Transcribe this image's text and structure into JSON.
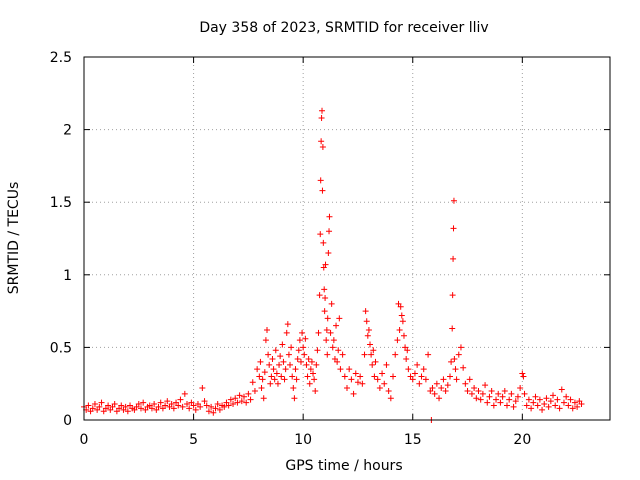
{
  "chart_data": {
    "type": "scatter",
    "title": "Day 358 of 2023, SRMTID for receiver lliv",
    "xlabel": "GPS time / hours",
    "ylabel": "SRMTID / TECUs",
    "xlim": [
      0,
      24
    ],
    "ylim": [
      0,
      2.5
    ],
    "xticks": [
      0,
      5,
      10,
      15,
      20
    ],
    "yticks": [
      0,
      0.5,
      1,
      1.5,
      2,
      2.5
    ],
    "xtick_labels": [
      "0",
      "5",
      "10",
      "15",
      "20"
    ],
    "ytick_labels": [
      "0",
      "0.5",
      "1",
      "1.5",
      "2",
      "2.5"
    ],
    "grid": true,
    "marker": "+",
    "color": "#ff0000",
    "series": [
      {
        "name": "SRMTID",
        "points": [
          [
            0.0,
            0.09
          ],
          [
            0.1,
            0.07
          ],
          [
            0.2,
            0.1
          ],
          [
            0.3,
            0.06
          ],
          [
            0.4,
            0.08
          ],
          [
            0.5,
            0.11
          ],
          [
            0.6,
            0.07
          ],
          [
            0.7,
            0.09
          ],
          [
            0.8,
            0.12
          ],
          [
            0.9,
            0.06
          ],
          [
            1.0,
            0.08
          ],
          [
            1.1,
            0.1
          ],
          [
            1.2,
            0.07
          ],
          [
            1.3,
            0.09
          ],
          [
            1.4,
            0.11
          ],
          [
            1.5,
            0.06
          ],
          [
            1.6,
            0.08
          ],
          [
            1.7,
            0.1
          ],
          [
            1.8,
            0.07
          ],
          [
            1.9,
            0.09
          ],
          [
            2.0,
            0.06
          ],
          [
            2.1,
            0.1
          ],
          [
            2.2,
            0.08
          ],
          [
            2.3,
            0.07
          ],
          [
            2.4,
            0.09
          ],
          [
            2.5,
            0.11
          ],
          [
            2.6,
            0.08
          ],
          [
            2.7,
            0.12
          ],
          [
            2.8,
            0.07
          ],
          [
            2.9,
            0.09
          ],
          [
            3.0,
            0.1
          ],
          [
            3.1,
            0.08
          ],
          [
            3.2,
            0.11
          ],
          [
            3.3,
            0.07
          ],
          [
            3.4,
            0.09
          ],
          [
            3.5,
            0.12
          ],
          [
            3.6,
            0.08
          ],
          [
            3.7,
            0.1
          ],
          [
            3.8,
            0.13
          ],
          [
            3.9,
            0.09
          ],
          [
            4.0,
            0.11
          ],
          [
            4.1,
            0.08
          ],
          [
            4.2,
            0.12
          ],
          [
            4.3,
            0.1
          ],
          [
            4.4,
            0.14
          ],
          [
            4.5,
            0.09
          ],
          [
            4.6,
            0.18
          ],
          [
            4.7,
            0.11
          ],
          [
            4.8,
            0.08
          ],
          [
            4.9,
            0.12
          ],
          [
            5.0,
            0.1
          ],
          [
            5.1,
            0.07
          ],
          [
            5.2,
            0.11
          ],
          [
            5.3,
            0.09
          ],
          [
            5.4,
            0.22
          ],
          [
            5.5,
            0.13
          ],
          [
            5.6,
            0.1
          ],
          [
            5.7,
            0.06
          ],
          [
            5.8,
            0.09
          ],
          [
            5.9,
            0.05
          ],
          [
            6.0,
            0.08
          ],
          [
            6.1,
            0.11
          ],
          [
            6.2,
            0.07
          ],
          [
            6.3,
            0.1
          ],
          [
            6.4,
            0.09
          ],
          [
            6.5,
            0.12
          ],
          [
            6.6,
            0.1
          ],
          [
            6.7,
            0.14
          ],
          [
            6.8,
            0.11
          ],
          [
            6.9,
            0.15
          ],
          [
            7.0,
            0.12
          ],
          [
            7.1,
            0.17
          ],
          [
            7.2,
            0.13
          ],
          [
            7.3,
            0.16
          ],
          [
            7.4,
            0.12
          ],
          [
            7.5,
            0.18
          ],
          [
            7.6,
            0.14
          ],
          [
            7.7,
            0.26
          ],
          [
            7.8,
            0.2
          ],
          [
            7.9,
            0.35
          ],
          [
            8.0,
            0.3
          ],
          [
            8.05,
            0.4
          ],
          [
            8.1,
            0.22
          ],
          [
            8.15,
            0.28
          ],
          [
            8.2,
            0.15
          ],
          [
            8.25,
            0.33
          ],
          [
            8.3,
            0.55
          ],
          [
            8.35,
            0.62
          ],
          [
            8.4,
            0.45
          ],
          [
            8.45,
            0.38
          ],
          [
            8.5,
            0.25
          ],
          [
            8.55,
            0.3
          ],
          [
            8.6,
            0.42
          ],
          [
            8.65,
            0.35
          ],
          [
            8.7,
            0.28
          ],
          [
            8.75,
            0.48
          ],
          [
            8.8,
            0.32
          ],
          [
            8.85,
            0.25
          ],
          [
            8.9,
            0.38
          ],
          [
            8.95,
            0.44
          ],
          [
            9.0,
            0.3
          ],
          [
            9.05,
            0.52
          ],
          [
            9.1,
            0.4
          ],
          [
            9.15,
            0.28
          ],
          [
            9.2,
            0.35
          ],
          [
            9.25,
            0.6
          ],
          [
            9.3,
            0.66
          ],
          [
            9.35,
            0.45
          ],
          [
            9.4,
            0.38
          ],
          [
            9.45,
            0.5
          ],
          [
            9.5,
            0.3
          ],
          [
            9.55,
            0.22
          ],
          [
            9.6,
            0.15
          ],
          [
            9.65,
            0.35
          ],
          [
            9.7,
            0.28
          ],
          [
            9.75,
            0.42
          ],
          [
            9.8,
            0.48
          ],
          [
            9.85,
            0.55
          ],
          [
            9.9,
            0.4
          ],
          [
            9.95,
            0.6
          ],
          [
            10.0,
            0.5
          ],
          [
            10.05,
            0.45
          ],
          [
            10.1,
            0.56
          ],
          [
            10.15,
            0.38
          ],
          [
            10.2,
            0.3
          ],
          [
            10.25,
            0.42
          ],
          [
            10.3,
            0.25
          ],
          [
            10.35,
            0.35
          ],
          [
            10.4,
            0.4
          ],
          [
            10.45,
            0.32
          ],
          [
            10.5,
            0.28
          ],
          [
            10.55,
            0.2
          ],
          [
            10.6,
            0.38
          ],
          [
            10.65,
            0.48
          ],
          [
            10.7,
            0.6
          ],
          [
            10.75,
            0.86
          ],
          [
            10.78,
            1.28
          ],
          [
            10.8,
            1.65
          ],
          [
            10.82,
            1.92
          ],
          [
            10.84,
            2.08
          ],
          [
            10.86,
            2.13
          ],
          [
            10.88,
            1.58
          ],
          [
            10.9,
            1.88
          ],
          [
            10.92,
            1.22
          ],
          [
            10.94,
            1.05
          ],
          [
            10.96,
            0.9
          ],
          [
            10.98,
            0.75
          ],
          [
            11.0,
            0.84
          ],
          [
            11.02,
            1.07
          ],
          [
            11.05,
            0.55
          ],
          [
            11.08,
            0.62
          ],
          [
            11.1,
            0.45
          ],
          [
            11.12,
            0.7
          ],
          [
            11.15,
            1.15
          ],
          [
            11.18,
            1.3
          ],
          [
            11.2,
            1.4
          ],
          [
            11.25,
            0.6
          ],
          [
            11.3,
            0.8
          ],
          [
            11.35,
            0.5
          ],
          [
            11.4,
            0.55
          ],
          [
            11.45,
            0.42
          ],
          [
            11.5,
            0.65
          ],
          [
            11.55,
            0.4
          ],
          [
            11.6,
            0.48
          ],
          [
            11.65,
            0.7
          ],
          [
            11.7,
            0.35
          ],
          [
            11.8,
            0.45
          ],
          [
            11.9,
            0.3
          ],
          [
            12.0,
            0.22
          ],
          [
            12.1,
            0.35
          ],
          [
            12.2,
            0.28
          ],
          [
            12.3,
            0.18
          ],
          [
            12.4,
            0.32
          ],
          [
            12.5,
            0.26
          ],
          [
            12.6,
            0.3
          ],
          [
            12.7,
            0.25
          ],
          [
            12.8,
            0.45
          ],
          [
            12.85,
            0.75
          ],
          [
            12.9,
            0.68
          ],
          [
            12.95,
            0.58
          ],
          [
            13.0,
            0.62
          ],
          [
            13.05,
            0.52
          ],
          [
            13.1,
            0.45
          ],
          [
            13.15,
            0.38
          ],
          [
            13.2,
            0.48
          ],
          [
            13.25,
            0.3
          ],
          [
            13.3,
            0.4
          ],
          [
            13.4,
            0.28
          ],
          [
            13.5,
            0.22
          ],
          [
            13.6,
            0.32
          ],
          [
            13.7,
            0.25
          ],
          [
            13.8,
            0.38
          ],
          [
            13.9,
            0.2
          ],
          [
            14.0,
            0.15
          ],
          [
            14.1,
            0.3
          ],
          [
            14.2,
            0.45
          ],
          [
            14.3,
            0.55
          ],
          [
            14.35,
            0.8
          ],
          [
            14.4,
            0.62
          ],
          [
            14.45,
            0.78
          ],
          [
            14.5,
            0.72
          ],
          [
            14.55,
            0.68
          ],
          [
            14.6,
            0.58
          ],
          [
            14.65,
            0.5
          ],
          [
            14.7,
            0.42
          ],
          [
            14.75,
            0.48
          ],
          [
            14.8,
            0.35
          ],
          [
            14.9,
            0.3
          ],
          [
            15.0,
            0.28
          ],
          [
            15.1,
            0.32
          ],
          [
            15.2,
            0.38
          ],
          [
            15.3,
            0.25
          ],
          [
            15.4,
            0.3
          ],
          [
            15.5,
            0.35
          ],
          [
            15.6,
            0.28
          ],
          [
            15.7,
            0.45
          ],
          [
            15.8,
            0.2
          ],
          [
            15.85,
            0.0
          ],
          [
            15.9,
            0.22
          ],
          [
            16.0,
            0.18
          ],
          [
            16.1,
            0.25
          ],
          [
            16.2,
            0.15
          ],
          [
            16.3,
            0.22
          ],
          [
            16.4,
            0.28
          ],
          [
            16.5,
            0.2
          ],
          [
            16.6,
            0.24
          ],
          [
            16.7,
            0.3
          ],
          [
            16.75,
            0.4
          ],
          [
            16.8,
            0.63
          ],
          [
            16.82,
            0.86
          ],
          [
            16.84,
            1.11
          ],
          [
            16.86,
            1.32
          ],
          [
            16.88,
            1.51
          ],
          [
            16.9,
            0.42
          ],
          [
            16.95,
            0.35
          ],
          [
            17.0,
            0.28
          ],
          [
            17.1,
            0.45
          ],
          [
            17.2,
            0.5
          ],
          [
            17.3,
            0.36
          ],
          [
            17.4,
            0.25
          ],
          [
            17.5,
            0.2
          ],
          [
            17.6,
            0.28
          ],
          [
            17.7,
            0.18
          ],
          [
            17.8,
            0.22
          ],
          [
            17.9,
            0.15
          ],
          [
            18.0,
            0.2
          ],
          [
            18.1,
            0.14
          ],
          [
            18.2,
            0.18
          ],
          [
            18.3,
            0.24
          ],
          [
            18.4,
            0.12
          ],
          [
            18.5,
            0.16
          ],
          [
            18.6,
            0.2
          ],
          [
            18.7,
            0.1
          ],
          [
            18.8,
            0.14
          ],
          [
            18.9,
            0.18
          ],
          [
            19.0,
            0.12
          ],
          [
            19.1,
            0.16
          ],
          [
            19.2,
            0.2
          ],
          [
            19.3,
            0.1
          ],
          [
            19.4,
            0.14
          ],
          [
            19.5,
            0.18
          ],
          [
            19.6,
            0.09
          ],
          [
            19.7,
            0.13
          ],
          [
            19.8,
            0.16
          ],
          [
            19.9,
            0.22
          ],
          [
            20.0,
            0.32
          ],
          [
            20.05,
            0.3
          ],
          [
            20.1,
            0.18
          ],
          [
            20.2,
            0.1
          ],
          [
            20.3,
            0.14
          ],
          [
            20.4,
            0.08
          ],
          [
            20.5,
            0.12
          ],
          [
            20.6,
            0.16
          ],
          [
            20.7,
            0.1
          ],
          [
            20.8,
            0.14
          ],
          [
            20.9,
            0.07
          ],
          [
            21.0,
            0.11
          ],
          [
            21.1,
            0.15
          ],
          [
            21.2,
            0.09
          ],
          [
            21.3,
            0.13
          ],
          [
            21.4,
            0.17
          ],
          [
            21.5,
            0.1
          ],
          [
            21.6,
            0.14
          ],
          [
            21.7,
            0.08
          ],
          [
            21.8,
            0.21
          ],
          [
            21.9,
            0.12
          ],
          [
            22.0,
            0.16
          ],
          [
            22.1,
            0.1
          ],
          [
            22.2,
            0.14
          ],
          [
            22.3,
            0.08
          ],
          [
            22.4,
            0.12
          ],
          [
            22.5,
            0.09
          ],
          [
            22.6,
            0.13
          ],
          [
            22.7,
            0.11
          ]
        ]
      }
    ]
  }
}
